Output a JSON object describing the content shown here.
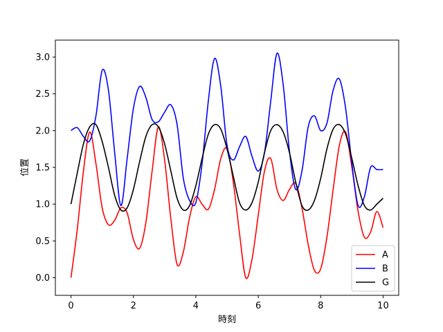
{
  "chart_data": {
    "type": "line",
    "title": "",
    "xlabel": "時刻",
    "ylabel": "位置",
    "xlim": [
      -0.5,
      10.5
    ],
    "ylim": [
      -0.24,
      3.23
    ],
    "xticks": [
      0,
      2,
      4,
      6,
      8,
      10
    ],
    "yticks": [
      0.0,
      0.5,
      1.0,
      1.5,
      2.0,
      2.5,
      3.0
    ],
    "ytick_labels": [
      "0.0",
      "0.5",
      "1.0",
      "1.5",
      "2.0",
      "2.5",
      "3.0"
    ],
    "grid": false,
    "legend": "bottom-right",
    "x": [
      0.0,
      0.2,
      0.4,
      0.6,
      0.8,
      1.0,
      1.2,
      1.4,
      1.6,
      1.8,
      2.0,
      2.2,
      2.4,
      2.6,
      2.8,
      3.0,
      3.2,
      3.4,
      3.6,
      3.8,
      4.0,
      4.2,
      4.4,
      4.6,
      4.8,
      5.0,
      5.2,
      5.4,
      5.6,
      5.8,
      6.0,
      6.2,
      6.4,
      6.6,
      6.8,
      7.0,
      7.2,
      7.4,
      7.6,
      7.8,
      8.0,
      8.2,
      8.4,
      8.6,
      8.8,
      9.0,
      9.2,
      9.4,
      9.6,
      9.8,
      10.0
    ],
    "series": [
      {
        "name": "A",
        "color": "#ff0000",
        "values": [
          0.0,
          0.65,
          1.45,
          1.98,
          1.55,
          0.95,
          0.72,
          0.78,
          0.95,
          0.88,
          0.52,
          0.4,
          0.75,
          1.45,
          2.05,
          1.6,
          0.8,
          0.18,
          0.35,
          0.82,
          1.1,
          1.0,
          0.93,
          1.2,
          1.62,
          1.75,
          1.3,
          0.6,
          0.0,
          0.25,
          0.85,
          1.45,
          1.62,
          1.2,
          1.05,
          1.2,
          1.28,
          0.95,
          0.45,
          0.1,
          0.12,
          0.55,
          1.2,
          1.8,
          1.98,
          1.5,
          0.9,
          0.55,
          0.62,
          0.9,
          0.68
        ]
      },
      {
        "name": "B",
        "color": "#0000ff",
        "values": [
          2.0,
          2.04,
          1.92,
          1.86,
          2.2,
          2.82,
          2.55,
          1.7,
          0.98,
          1.62,
          2.3,
          2.6,
          2.45,
          2.15,
          2.12,
          2.25,
          2.35,
          2.08,
          1.35,
          1.05,
          1.02,
          1.55,
          2.4,
          2.98,
          2.6,
          1.8,
          1.6,
          1.78,
          1.92,
          1.65,
          1.45,
          1.7,
          2.4,
          3.05,
          2.62,
          1.72,
          1.2,
          1.45,
          2.05,
          2.2,
          2.0,
          2.1,
          2.55,
          2.7,
          2.3,
          1.55,
          0.98,
          1.1,
          1.5,
          1.47,
          1.47
        ]
      },
      {
        "name": "G",
        "color": "#000000",
        "values": [
          1.0,
          1.42,
          1.82,
          2.05,
          2.08,
          1.85,
          1.5,
          1.12,
          0.92,
          0.95,
          1.2,
          1.58,
          1.92,
          2.08,
          2.05,
          1.82,
          1.45,
          1.08,
          0.92,
          0.98,
          1.25,
          1.62,
          1.95,
          2.08,
          2.02,
          1.75,
          1.38,
          1.02,
          0.92,
          1.02,
          1.3,
          1.7,
          2.0,
          2.08,
          1.98,
          1.7,
          1.3,
          0.98,
          0.92,
          1.05,
          1.35,
          1.75,
          2.02,
          2.08,
          1.95,
          1.62,
          1.25,
          0.98,
          0.92,
          1.0,
          1.08
        ]
      }
    ]
  }
}
